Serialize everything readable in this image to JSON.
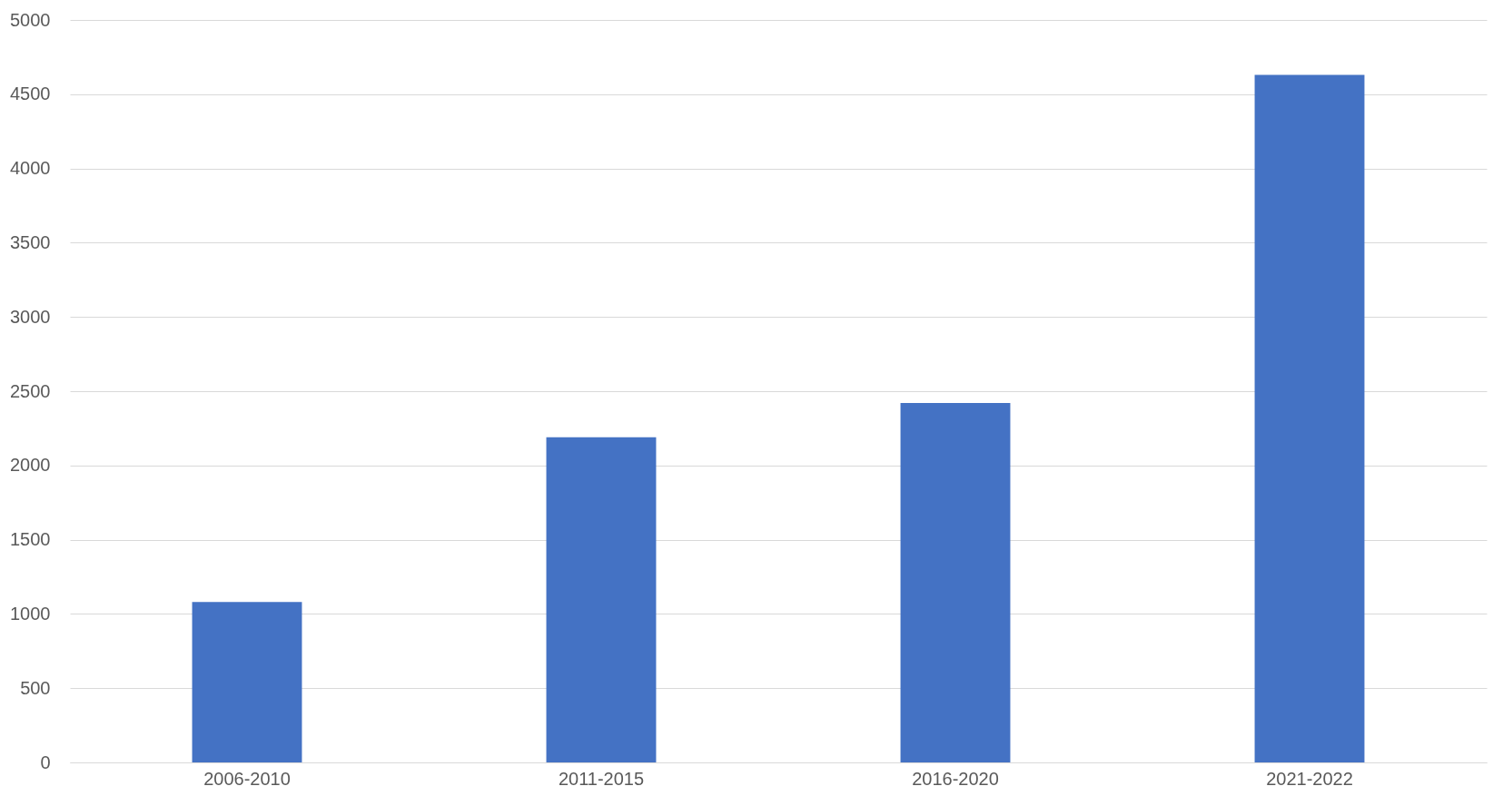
{
  "chart_data": {
    "type": "bar",
    "categories": [
      "2006-2010",
      "2011-2015",
      "2016-2020",
      "2021-2022"
    ],
    "values": [
      1080,
      2190,
      2420,
      4630
    ],
    "color": "#4472c4",
    "ylim": [
      0,
      5000
    ],
    "yticks": [
      0,
      500,
      1000,
      1500,
      2000,
      2500,
      3000,
      3500,
      4000,
      4500,
      5000
    ],
    "grid": "y"
  }
}
